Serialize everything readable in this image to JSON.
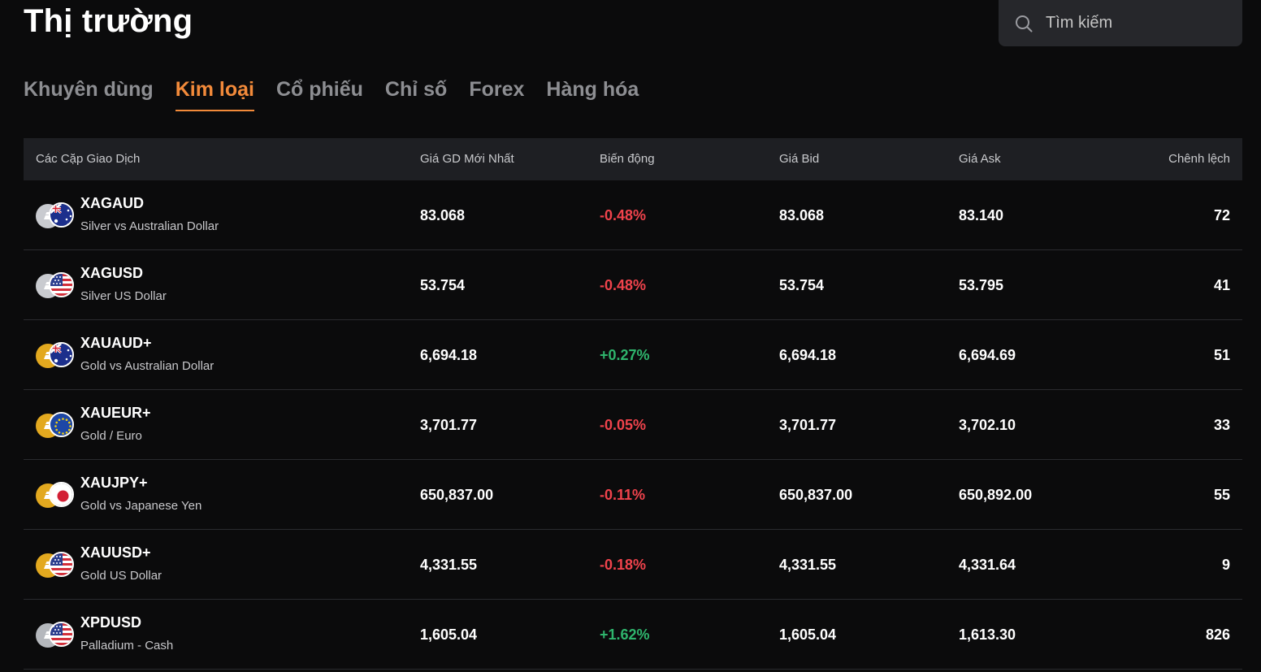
{
  "page": {
    "title": "Thị trường"
  },
  "search": {
    "placeholder": "Tìm kiếm",
    "icon": "search-icon"
  },
  "tabs": [
    {
      "label": "Khuyên dùng",
      "active": false
    },
    {
      "label": "Kim loại",
      "active": true
    },
    {
      "label": "Cổ phiếu",
      "active": false
    },
    {
      "label": "Chỉ số",
      "active": false
    },
    {
      "label": "Forex",
      "active": false
    },
    {
      "label": "Hàng hóa",
      "active": false
    }
  ],
  "colors": {
    "accent": "#f28a3a",
    "negative": "#f0434c",
    "positive": "#2fb56d",
    "header_bg": "#1e1f23",
    "page_bg": "#0b0b0c"
  },
  "table": {
    "headers": [
      "Các Cặp Giao Dịch",
      "Giá GD Mới Nhất",
      "Biến động",
      "Giá Bid",
      "Giá Ask",
      "Chênh lệch"
    ],
    "rows": [
      {
        "symbol": "XAGAUD",
        "name": "Silver vs Australian Dollar",
        "last": "83.068",
        "change": "-0.48%",
        "direction": "down",
        "bid": "83.068",
        "ask": "83.140",
        "spread": "72",
        "metal": "silver",
        "flag": "au-flag"
      },
      {
        "symbol": "XAGUSD",
        "name": "Silver US Dollar",
        "last": "53.754",
        "change": "-0.48%",
        "direction": "down",
        "bid": "53.754",
        "ask": "53.795",
        "spread": "41",
        "metal": "silver",
        "flag": "us-flag"
      },
      {
        "symbol": "XAUAUD+",
        "name": "Gold vs Australian Dollar",
        "last": "6,694.18",
        "change": "+0.27%",
        "direction": "up",
        "bid": "6,694.18",
        "ask": "6,694.69",
        "spread": "51",
        "metal": "gold",
        "flag": "au-flag"
      },
      {
        "symbol": "XAUEUR+",
        "name": "Gold / Euro",
        "last": "3,701.77",
        "change": "-0.05%",
        "direction": "down",
        "bid": "3,701.77",
        "ask": "3,702.10",
        "spread": "33",
        "metal": "gold",
        "flag": "eu-flag"
      },
      {
        "symbol": "XAUJPY+",
        "name": "Gold vs Japanese Yen",
        "last": "650,837.00",
        "change": "-0.11%",
        "direction": "down",
        "bid": "650,837.00",
        "ask": "650,892.00",
        "spread": "55",
        "metal": "gold",
        "flag": "jp-flag"
      },
      {
        "symbol": "XAUUSD+",
        "name": "Gold US Dollar",
        "last": "4,331.55",
        "change": "-0.18%",
        "direction": "down",
        "bid": "4,331.55",
        "ask": "4,331.64",
        "spread": "9",
        "metal": "gold",
        "flag": "us-flag"
      },
      {
        "symbol": "XPDUSD",
        "name": "Palladium - Cash",
        "last": "1,605.04",
        "change": "+1.62%",
        "direction": "up",
        "bid": "1,605.04",
        "ask": "1,613.30",
        "spread": "826",
        "metal": "palladium",
        "flag": "us-flag"
      }
    ]
  }
}
